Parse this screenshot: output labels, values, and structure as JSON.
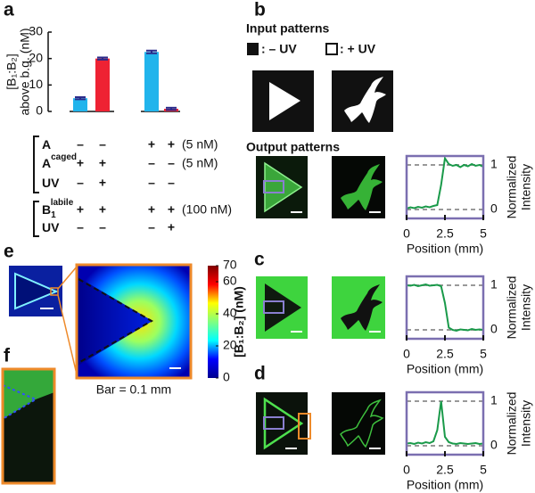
{
  "panel_labels": [
    "a",
    "b",
    "c",
    "d",
    "e",
    "f"
  ],
  "input_patterns": {
    "title": "Input patterns",
    "legend": [
      ": – UV",
      ": + UV"
    ]
  },
  "output_patterns": {
    "title": "Output patterns"
  },
  "scale_note": "Bar = 0.1 mm",
  "conditions": [
    {
      "rows": [
        {
          "label": "A",
          "signs": [
            "–",
            "–",
            "+",
            "+"
          ],
          "note": "(5 nM)"
        },
        {
          "label": "A",
          "sup": "caged",
          "signs": [
            "+",
            "+",
            "–",
            "–"
          ],
          "note": "(5 nM)"
        },
        {
          "label": "UV",
          "signs": [
            "–",
            "+",
            "–",
            "–"
          ]
        }
      ]
    },
    {
      "rows": [
        {
          "label": "B",
          "sub": "1",
          "sup": "labile",
          "signs": [
            "+",
            "+",
            "+",
            "+"
          ],
          "note": "(100 nM)"
        },
        {
          "label": "UV",
          "signs": [
            "–",
            "–",
            "–",
            "+"
          ]
        }
      ]
    }
  ],
  "chart_data": [
    {
      "type": "bar",
      "ylabel": [
        "[B₁:B₂]",
        "above b.g. (nM)"
      ],
      "categories": [
        null,
        null,
        null,
        null
      ],
      "values": [
        5,
        20,
        22.5,
        1
      ],
      "errors": [
        0.4,
        0.4,
        0.5,
        0.4
      ],
      "colors": [
        "#21b4ec",
        "#ee2233",
        "#21b4ec",
        "#ee2233"
      ],
      "error_color": "#2a2a8a",
      "ylim": [
        0,
        30
      ],
      "yticks": [
        0,
        10,
        20,
        30
      ]
    },
    {
      "type": "line",
      "x": [
        0,
        0.25,
        0.5,
        0.75,
        1,
        1.25,
        1.5,
        1.75,
        2,
        2.25,
        2.5,
        2.75,
        3,
        3.25,
        3.5,
        3.75,
        4,
        4.25,
        4.5,
        4.75,
        5
      ],
      "values": [
        0.02,
        0.05,
        0.03,
        0.06,
        0.04,
        0.07,
        0.05,
        0.08,
        0.1,
        0.55,
        1.15,
        1.02,
        0.98,
        1.0,
        0.95,
        1.0,
        0.97,
        1.02,
        0.98,
        1.0,
        0.96
      ],
      "color": "#1a9a4a",
      "frame_color": "#7b6fb0",
      "xlim": [
        0,
        5
      ],
      "xticks": [
        0,
        2.5,
        5
      ],
      "ylim": [
        -0.2,
        1.2
      ],
      "yticks": [
        0,
        1
      ],
      "grid": true,
      "xlabel": "Position (mm)",
      "ylabel": [
        "Normalized",
        "Intensity"
      ]
    },
    {
      "type": "line",
      "x": [
        0,
        0.25,
        0.5,
        0.75,
        1,
        1.25,
        1.5,
        1.75,
        2,
        2.25,
        2.5,
        2.75,
        3,
        3.25,
        3.5,
        3.75,
        4,
        4.25,
        4.5,
        4.75,
        5
      ],
      "values": [
        1.0,
        0.99,
        1.01,
        0.98,
        1.0,
        1.02,
        0.99,
        1.0,
        1.01,
        0.98,
        0.6,
        0.05,
        0.0,
        -0.02,
        0.01,
        0.0,
        -0.01,
        0.02,
        0.0,
        0.01,
        0.0
      ],
      "color": "#1a9a4a",
      "frame_color": "#7b6fb0",
      "xlim": [
        0,
        5
      ],
      "xticks": [
        0,
        2.5,
        5
      ],
      "ylim": [
        -0.2,
        1.2
      ],
      "yticks": [
        0,
        1
      ],
      "grid": true,
      "xlabel": "Position (mm)",
      "ylabel": [
        "Normalized",
        "Intensity"
      ]
    },
    {
      "type": "line",
      "x": [
        0,
        0.25,
        0.5,
        0.75,
        1,
        1.25,
        1.5,
        1.75,
        2,
        2.25,
        2.5,
        2.75,
        3,
        3.25,
        3.5,
        3.75,
        4,
        4.25,
        4.5,
        4.75,
        5
      ],
      "values": [
        0.05,
        0.06,
        0.04,
        0.07,
        0.05,
        0.08,
        0.06,
        0.1,
        0.35,
        1.0,
        0.2,
        0.08,
        0.05,
        0.04,
        0.06,
        0.05,
        0.04,
        0.05,
        0.06,
        0.04,
        0.05
      ],
      "color": "#1a9a4a",
      "frame_color": "#7b6fb0",
      "xlim": [
        0,
        5
      ],
      "xticks": [
        0,
        2.5,
        5
      ],
      "ylim": [
        -0.2,
        1.2
      ],
      "yticks": [
        0,
        1
      ],
      "grid": true,
      "xlabel": "Position (mm)",
      "ylabel": [
        "Normalized",
        "Intensity"
      ]
    },
    {
      "type": "colorbar",
      "colormap": "jet",
      "ylabel": "[B₁:B₂] (nM)",
      "ylim": [
        0,
        70
      ],
      "yticks": [
        0,
        20,
        40,
        60,
        70
      ]
    }
  ]
}
